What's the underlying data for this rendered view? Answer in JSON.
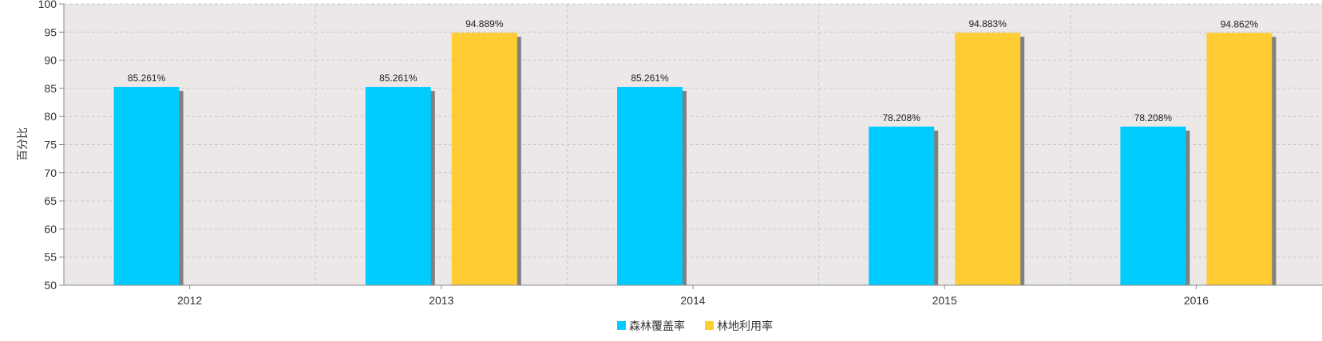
{
  "chart_data": {
    "type": "bar",
    "categories": [
      "2012",
      "2013",
      "2014",
      "2015",
      "2016"
    ],
    "series": [
      {
        "name": "森林覆盖率",
        "color": "#00ccff",
        "values": [
          85.261,
          85.261,
          85.261,
          78.208,
          78.208
        ],
        "labels": [
          "85.261%",
          "85.261%",
          "85.261%",
          "78.208%",
          "78.208%"
        ]
      },
      {
        "name": "林地利用率",
        "color": "#ffcc33",
        "values": [
          null,
          94.889,
          null,
          94.883,
          94.862
        ],
        "labels": [
          null,
          "94.889%",
          null,
          "94.883%",
          "94.862%"
        ]
      }
    ],
    "ylabel": "百分比",
    "ylim": [
      50,
      100
    ],
    "yticks": [
      50,
      55,
      60,
      65,
      70,
      75,
      80,
      85,
      90,
      95,
      100
    ],
    "grid": true,
    "legend_position": "bottom-center",
    "plot_background": "#ece8e8",
    "shadow_color": "#808080"
  }
}
